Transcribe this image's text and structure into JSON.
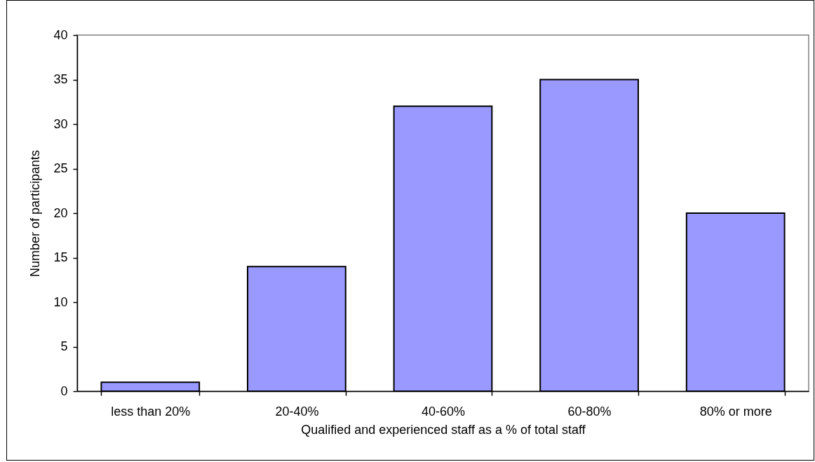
{
  "chart_data": {
    "type": "bar",
    "xlabel": "Qualified and experienced staff as a % of total staff",
    "ylabel": "Number of participants",
    "categories": [
      "less than 20%",
      "20-40%",
      "40-60%",
      "60-80%",
      "80% or more"
    ],
    "values": [
      1,
      14,
      32,
      35,
      20
    ],
    "color": "#9999ff",
    "ylim": [
      0,
      40
    ],
    "yticks": [
      0,
      5,
      10,
      15,
      20,
      25,
      30,
      35,
      40
    ]
  }
}
